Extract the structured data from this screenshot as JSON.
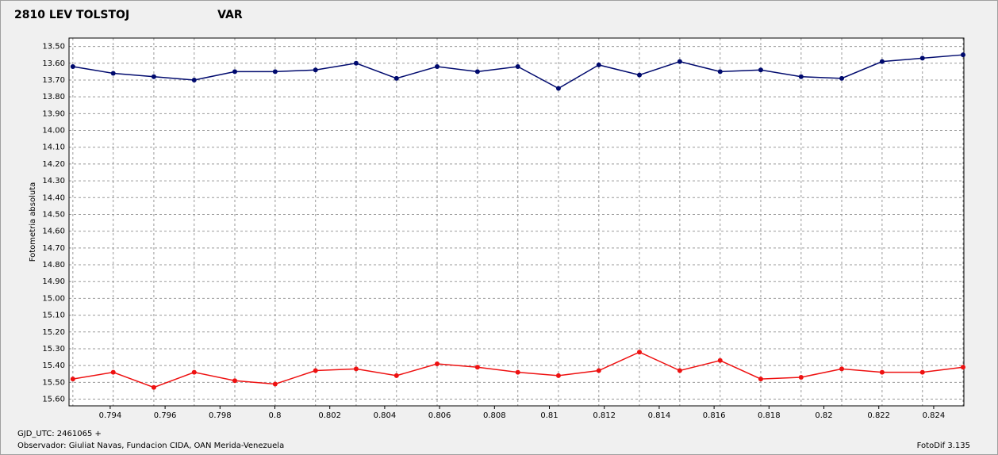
{
  "chart_data": {
    "type": "line",
    "ylabel": "Fotometria absoluta",
    "x": [
      0.79264,
      0.79411,
      0.79559,
      0.79706,
      0.79854,
      0.80001,
      0.80148,
      0.80296,
      0.80443,
      0.80591,
      0.80738,
      0.80885,
      0.81033,
      0.8118,
      0.81328,
      0.81475,
      0.81622,
      0.8177,
      0.81917,
      0.82065,
      0.82212,
      0.82359,
      0.82507
    ],
    "series": [
      {
        "name": "2810 LEV TOLSTOJ",
        "color": "#ee1111",
        "values": [
          15.48,
          15.44,
          15.53,
          15.44,
          15.49,
          15.51,
          15.43,
          15.42,
          15.46,
          15.39,
          15.41,
          15.44,
          15.46,
          15.43,
          15.32,
          15.43,
          15.37,
          15.48,
          15.47,
          15.42,
          15.44,
          15.44,
          15.41
        ]
      },
      {
        "name": "VAR",
        "color": "#000a6e",
        "values": [
          13.62,
          13.66,
          13.68,
          13.7,
          13.65,
          13.65,
          13.64,
          13.6,
          13.69,
          13.62,
          13.65,
          13.62,
          13.75,
          13.61,
          13.67,
          13.59,
          13.65,
          13.64,
          13.68,
          13.69,
          13.59,
          13.57,
          13.55
        ]
      }
    ],
    "xlim": [
      0.7925,
      0.8251
    ],
    "xticks": [
      0.794,
      0.796,
      0.798,
      0.8,
      0.802,
      0.804,
      0.806,
      0.808,
      0.81,
      0.812,
      0.814,
      0.816,
      0.818,
      0.82,
      0.822,
      0.824
    ],
    "ylim": [
      13.45,
      15.64
    ],
    "y_inverted": true,
    "yticks": [
      {
        "value": 13.5,
        "label": "13.50"
      },
      {
        "value": 13.6,
        "label": "13.60"
      },
      {
        "value": 13.7,
        "label": "13.70"
      },
      {
        "value": 13.8,
        "label": "13.80"
      },
      {
        "value": 13.9,
        "label": "13.90"
      },
      {
        "value": 14.0,
        "label": "14.00"
      },
      {
        "value": 14.1,
        "label": "14.10"
      },
      {
        "value": 14.2,
        "label": "14.20"
      },
      {
        "value": 14.3,
        "label": "14.30"
      },
      {
        "value": 14.4,
        "label": "14.40"
      },
      {
        "value": 14.5,
        "label": "14.50"
      },
      {
        "value": 14.6,
        "label": "14.60"
      },
      {
        "value": 14.7,
        "label": "14.70"
      },
      {
        "value": 14.8,
        "label": "14.80"
      },
      {
        "value": 14.9,
        "label": "14.90"
      },
      {
        "value": 15.0,
        "label": "15.00"
      },
      {
        "value": 15.1,
        "label": "15.10"
      },
      {
        "value": 15.2,
        "label": "15.20"
      },
      {
        "value": 15.3,
        "label": "15.30"
      },
      {
        "value": 15.4,
        "label": "15.40"
      },
      {
        "value": 15.5,
        "label": "15.50"
      },
      {
        "value": 15.6,
        "label": "15.60"
      }
    ],
    "grid": true,
    "x_grid_at_points": true,
    "annotations": [
      "GJD_UTC: 2461065 +",
      "Observador: Giuliat Navas, Fundacion CIDA, OAN  Merida-Venezuela",
      "FotoDif 3.135"
    ]
  }
}
